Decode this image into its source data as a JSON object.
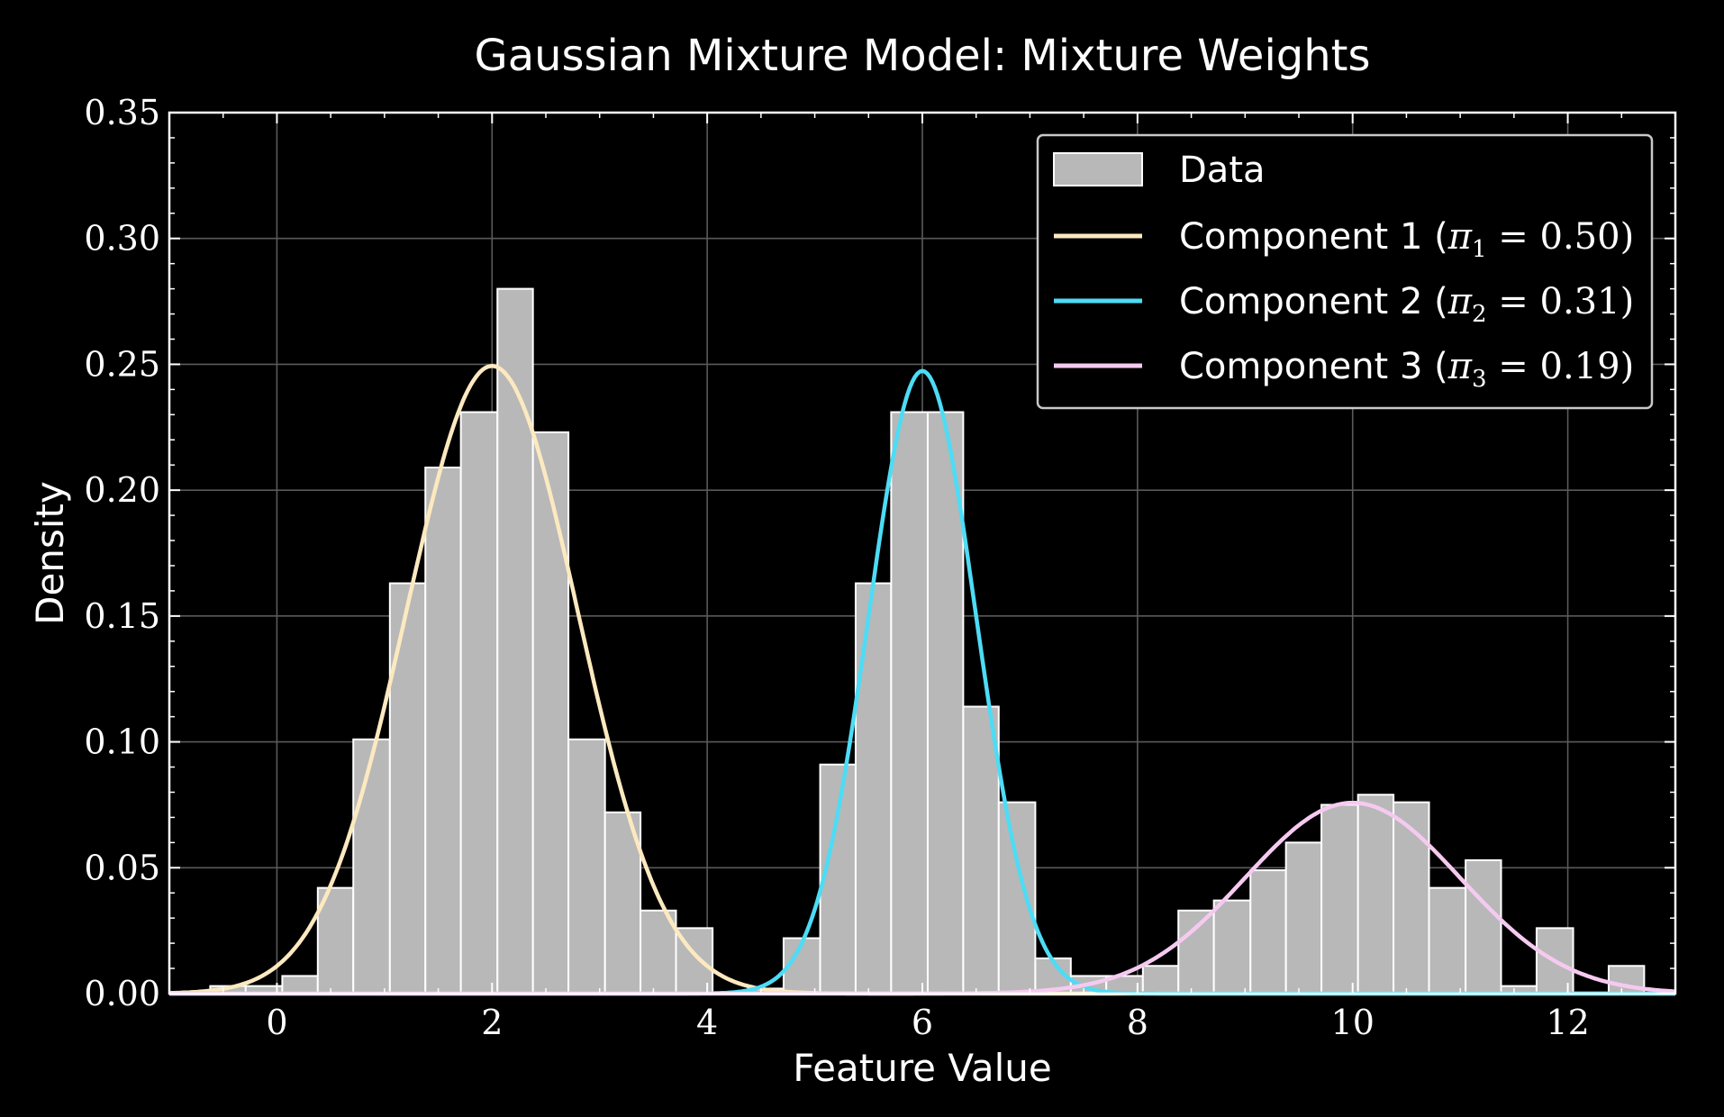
{
  "chart_data": {
    "type": "bar",
    "title": "Gaussian Mixture Model: Mixture Weights",
    "xlabel": "Feature Value",
    "ylabel": "Density",
    "xlim": [
      -1.0,
      13.0
    ],
    "ylim": [
      0.0,
      0.35
    ],
    "x_ticks": [
      0,
      2,
      4,
      6,
      8,
      10,
      12
    ],
    "x_tick_labels": [
      "0",
      "2",
      "4",
      "6",
      "8",
      "10",
      "12"
    ],
    "y_ticks": [
      0.0,
      0.05,
      0.1,
      0.15,
      0.2,
      0.25,
      0.3,
      0.35
    ],
    "y_tick_labels": [
      "0.00",
      "0.05",
      "0.10",
      "0.15",
      "0.20",
      "0.25",
      "0.30",
      "0.35"
    ],
    "grid": true,
    "legend_position": "top-right",
    "histogram": {
      "name": "Data",
      "color": "#b8b8b8",
      "edge_color": "#ffffff",
      "bin_edges": [
        -0.62,
        -0.29,
        0.05,
        0.38,
        0.71,
        1.05,
        1.38,
        1.71,
        2.05,
        2.38,
        2.71,
        3.05,
        3.38,
        3.71,
        4.05,
        4.38,
        4.71,
        5.05,
        5.38,
        5.71,
        6.05,
        6.38,
        6.71,
        7.05,
        7.38,
        7.71,
        8.05,
        8.38,
        8.71,
        9.05,
        9.38,
        9.71,
        10.05,
        10.38,
        10.71,
        11.05,
        11.38,
        11.71,
        12.05,
        12.38,
        12.71
      ],
      "densities": [
        0.003,
        0.003,
        0.007,
        0.042,
        0.101,
        0.163,
        0.209,
        0.231,
        0.28,
        0.223,
        0.101,
        0.072,
        0.033,
        0.026,
        0.0,
        0.002,
        0.022,
        0.091,
        0.163,
        0.231,
        0.231,
        0.114,
        0.076,
        0.014,
        0.007,
        0.007,
        0.011,
        0.033,
        0.037,
        0.049,
        0.06,
        0.075,
        0.079,
        0.076,
        0.042,
        0.053,
        0.003,
        0.026,
        0.0,
        0.011
      ]
    },
    "series": [
      {
        "name": "Component 1",
        "label_prefix": "Component 1 (",
        "pi_symbol": "π",
        "subscript": "1",
        "label_suffix": " = 0.50)",
        "weight": 0.5,
        "mean": 2.0,
        "std": 0.8,
        "color": "#fde9c0"
      },
      {
        "name": "Component 2",
        "label_prefix": "Component 2 (",
        "pi_symbol": "π",
        "subscript": "2",
        "label_suffix": " = 0.31)",
        "weight": 0.31,
        "mean": 6.0,
        "std": 0.5,
        "color": "#4ddcf5"
      },
      {
        "name": "Component 3",
        "label_prefix": "Component 3 (",
        "pi_symbol": "π",
        "subscript": "3",
        "label_suffix": " = 0.19)",
        "weight": 0.19,
        "mean": 10.0,
        "std": 1.0,
        "color": "#f6caf0"
      }
    ]
  }
}
